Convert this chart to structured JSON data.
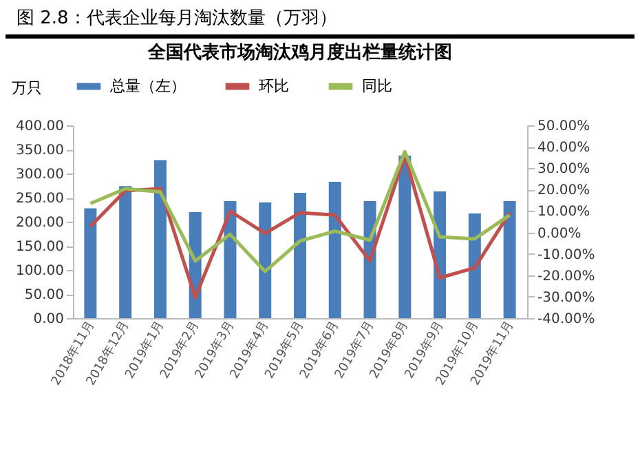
{
  "chart_data": {
    "type": "bar",
    "title": "图 2.8：代表企业每月淘汰数量（万羽）",
    "subtitle": "全国代表市场淘汰鸡月度出栏量统计图",
    "ylabel": "万只",
    "categories": [
      "2018年11月",
      "2018年12月",
      "2019年1月",
      "2019年2月",
      "2019年3月",
      "2019年4月",
      "2019年5月",
      "2019年6月",
      "2019年7月",
      "2019年8月",
      "2019年9月",
      "2019年10月",
      "2019年11月"
    ],
    "series": [
      {
        "name": "总量（左）",
        "color": "#4a7ebb",
        "values": [
          228,
          274,
          328,
          220,
          243,
          240,
          260,
          283,
          243,
          337,
          263,
          217,
          243
        ]
      },
      {
        "name": "环比",
        "type": "line",
        "axis": "y2",
        "color": "#c0504d",
        "values": [
          2.8,
          19.5,
          20.4,
          -30.4,
          9.9,
          -0.4,
          9.2,
          8.1,
          -13.3,
          36,
          -21.2,
          -16.5,
          9.2
        ]
      },
      {
        "name": "同比",
        "type": "line",
        "axis": "y2",
        "color": "#9bbb59",
        "values": [
          13.5,
          20.4,
          18.9,
          -13.3,
          -0.9,
          -18.2,
          -4,
          0.6,
          -3.6,
          37.7,
          -2.1,
          -3,
          8.1
        ]
      }
    ],
    "ylim": [
      0,
      400
    ],
    "yticks": [
      {
        "value": 0,
        "label": "0.00"
      },
      {
        "value": 50,
        "label": "50.00"
      },
      {
        "value": 100,
        "label": "100.00"
      },
      {
        "value": 150,
        "label": "150.00"
      },
      {
        "value": 200,
        "label": "200.00"
      },
      {
        "value": 250,
        "label": "250.00"
      },
      {
        "value": 300,
        "label": "300.00"
      },
      {
        "value": 350,
        "label": "350.00"
      },
      {
        "value": 400,
        "label": "400.00"
      }
    ],
    "y2lim": [
      -40,
      50
    ],
    "y2ticks": [
      {
        "value": -40,
        "label": "-40.00%"
      },
      {
        "value": -30,
        "label": "-30.00%"
      },
      {
        "value": -20,
        "label": "-20.00%"
      },
      {
        "value": -10,
        "label": "-10.00%"
      },
      {
        "value": 0,
        "label": "0.00%"
      },
      {
        "value": 10,
        "label": "10.00%"
      },
      {
        "value": 20,
        "label": "20.00%"
      },
      {
        "value": 30,
        "label": "30.00%"
      },
      {
        "value": 40,
        "label": "40.00%"
      },
      {
        "value": 50,
        "label": "50.00%"
      }
    ],
    "legend": "top",
    "grid": false,
    "marker": "none",
    "line_style": "solid"
  }
}
